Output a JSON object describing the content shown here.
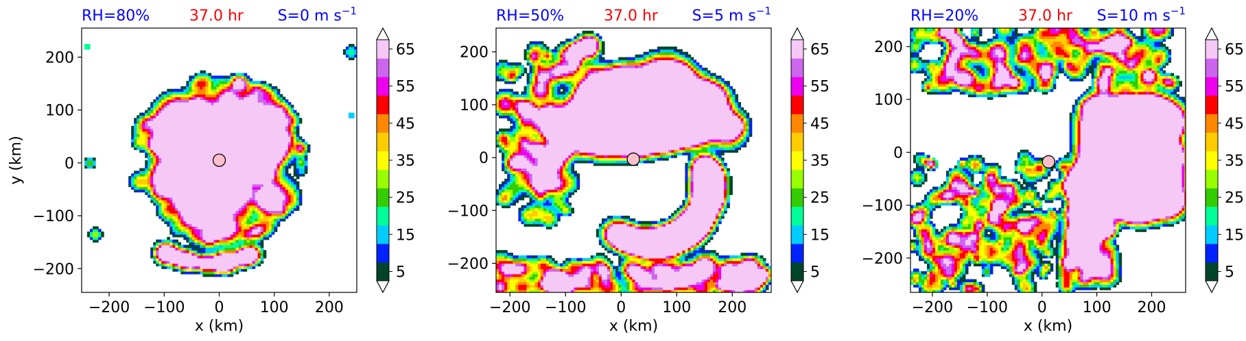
{
  "chart_data": [
    {
      "type": "heatmap",
      "title_left": "RH=80%",
      "title_center": "37.0 hr",
      "title_right_prefix": "S=0 m s",
      "title_right_sup": "−1",
      "xlabel": "x (km)",
      "ylabel": "y (km)",
      "xlim": [
        -250,
        250
      ],
      "ylim": [
        -245,
        255
      ],
      "xticks": [
        -200,
        -100,
        0,
        100,
        200
      ],
      "xtick_labels": [
        "−200",
        "−100",
        "0",
        "100",
        "200"
      ],
      "yticks": [
        -200,
        -100,
        0,
        100,
        200
      ],
      "ytick_labels": [
        "−200",
        "−100",
        "0",
        "100",
        "200"
      ],
      "center_marker": {
        "x": 0,
        "y": 5
      },
      "pattern": "symmetric",
      "colorbar": {
        "ticks": [
          5,
          15,
          25,
          35,
          45,
          55,
          65
        ],
        "tick_labels": [
          "5",
          "15",
          "25",
          "35",
          "45",
          "55",
          "65"
        ]
      }
    },
    {
      "type": "heatmap",
      "title_left": "RH=50%",
      "title_center": "37.0 hr",
      "title_right_prefix": "S=5 m s",
      "title_right_sup": "−1",
      "xlabel": "x (km)",
      "ylabel": "",
      "xlim": [
        -225,
        270
      ],
      "ylim": [
        -255,
        245
      ],
      "xticks": [
        -200,
        -100,
        0,
        100,
        200
      ],
      "xtick_labels": [
        "−200",
        "−100",
        "0",
        "100",
        "200"
      ],
      "yticks": [
        -200,
        -100,
        0,
        100,
        200
      ],
      "ytick_labels": [
        "−200",
        "−100",
        "0",
        "100",
        "200"
      ],
      "center_marker": {
        "x": 22,
        "y": -3
      },
      "pattern": "comma",
      "colorbar": {
        "ticks": [
          5,
          15,
          25,
          35,
          45,
          55,
          65
        ],
        "tick_labels": [
          "5",
          "15",
          "25",
          "35",
          "45",
          "55",
          "65"
        ]
      }
    },
    {
      "type": "heatmap",
      "title_left": "RH=20%",
      "title_center": "37.0 hr",
      "title_right_prefix": "S=10 m s",
      "title_right_sup": "−1",
      "xlabel": "x (km)",
      "ylabel": "",
      "xlim": [
        -240,
        262
      ],
      "ylim": [
        -265,
        235
      ],
      "xticks": [
        -200,
        -100,
        0,
        100,
        200
      ],
      "xtick_labels": [
        "−200",
        "−100",
        "0",
        "100",
        "200"
      ],
      "yticks": [
        -200,
        -100,
        0,
        100,
        200
      ],
      "ytick_labels": [
        "−200",
        "−100",
        "0",
        "100",
        "200"
      ],
      "center_marker": {
        "x": 12,
        "y": -18
      },
      "pattern": "sheared",
      "colorbar": {
        "ticks": [
          5,
          15,
          25,
          35,
          45,
          55,
          65
        ],
        "tick_labels": [
          "5",
          "15",
          "25",
          "35",
          "45",
          "55",
          "65"
        ]
      }
    }
  ],
  "colors": {
    "levels": [
      "#00442a",
      "#0022ff",
      "#00ccff",
      "#00ff99",
      "#33cc00",
      "#99ff00",
      "#ffff00",
      "#ffcc00",
      "#ff8800",
      "#ff0000",
      "#ee00ee",
      "#cc66ee",
      "#f6c8f6"
    ],
    "title_blue": "#0000ff",
    "title_red": "#ff0000",
    "marker_fill": "#ffc0cb"
  }
}
